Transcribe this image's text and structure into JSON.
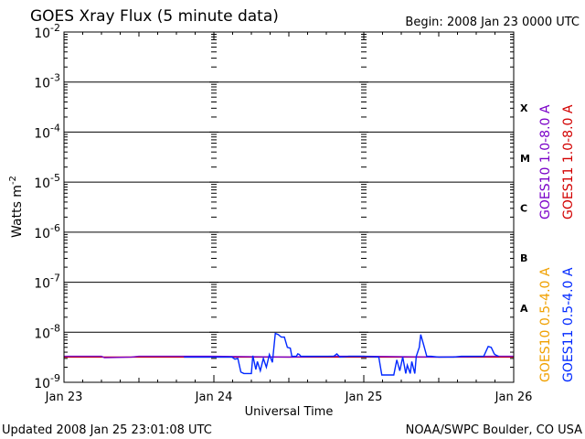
{
  "chart_data": {
    "type": "line",
    "title": "GOES Xray Flux (5 minute data)",
    "begin_label": "Begin:  2008 Jan 23 0000 UTC",
    "xlabel": "Universal Time",
    "ylabel": "Watts m",
    "ylabel_sup": "-2",
    "x_ticks": [
      "Jan 23",
      "Jan 24",
      "Jan 25",
      "Jan 26"
    ],
    "x_range_days": [
      0,
      3
    ],
    "y_scale": "log",
    "ylim": [
      1e-09,
      0.01
    ],
    "y_ticks": [
      {
        "base": "10",
        "exp": "-2"
      },
      {
        "base": "10",
        "exp": "-3"
      },
      {
        "base": "10",
        "exp": "-4"
      },
      {
        "base": "10",
        "exp": "-5"
      },
      {
        "base": "10",
        "exp": "-6"
      },
      {
        "base": "10",
        "exp": "-7"
      },
      {
        "base": "10",
        "exp": "-8"
      },
      {
        "base": "10",
        "exp": "-9"
      }
    ],
    "flare_classes": [
      "X",
      "M",
      "C",
      "B",
      "A"
    ],
    "legend": [
      {
        "text": "GOES10 1.0-8.0 A",
        "color": "#7a00c8"
      },
      {
        "text": "GOES11 1.0-8.0 A",
        "color": "#d20000"
      },
      {
        "text": "GOES10 0.5-4.0 A",
        "color": "#f0a000"
      },
      {
        "text": "GOES11 0.5-4.0 A",
        "color": "#0028ff"
      }
    ],
    "series": [
      {
        "name": "GOES11 1.0-8.0 A",
        "color": "#d20000",
        "x": [
          0,
          3
        ],
        "y": [
          3.2e-09,
          3.2e-09
        ]
      },
      {
        "name": "GOES10 1.0-8.0 A",
        "color": "#7a00c8",
        "x": [
          0,
          0.25,
          0.27,
          0.45,
          0.5,
          1.0,
          1.5,
          1.8,
          2.0,
          2.5,
          2.85,
          3
        ],
        "y": [
          3.3e-09,
          3.3e-09,
          3.1e-09,
          3.2e-09,
          3.3e-09,
          3.3e-09,
          3.2e-09,
          3.3e-09,
          3.3e-09,
          3.2e-09,
          3.3e-09,
          3.3e-09
        ]
      },
      {
        "name": "GOES11 0.5-4.0 A",
        "color": "#0028ff",
        "x": [
          0.8,
          1.0,
          1.12,
          1.14,
          1.16,
          1.18,
          1.2,
          1.22,
          1.25,
          1.26,
          1.28,
          1.29,
          1.31,
          1.33,
          1.35,
          1.37,
          1.39,
          1.41,
          1.43,
          1.45,
          1.47,
          1.49,
          1.51,
          1.52,
          1.55,
          1.56,
          1.57,
          1.58,
          1.6,
          1.8,
          1.82,
          1.84,
          1.9,
          2.0,
          2.1,
          2.12,
          2.14,
          2.2,
          2.22,
          2.24,
          2.26,
          2.28,
          2.29,
          2.31,
          2.32,
          2.34,
          2.35,
          2.37,
          2.38,
          2.4,
          2.42,
          2.45,
          2.5,
          2.6,
          2.65,
          2.7,
          2.8,
          2.83,
          2.85,
          2.87,
          2.88,
          2.9
        ],
        "y": [
          3.2e-09,
          3.2e-09,
          3.2e-09,
          2.9e-09,
          3e-09,
          1.6e-09,
          1.5e-09,
          1.5e-09,
          1.5e-09,
          3.4e-09,
          1.8e-09,
          2.6e-09,
          1.7e-09,
          3e-09,
          2e-09,
          3.6e-09,
          2.5e-09,
          9.5e-09,
          9e-09,
          8e-09,
          8e-09,
          5e-09,
          4.8e-09,
          3.3e-09,
          3.3e-09,
          3.7e-09,
          3.6e-09,
          3.3e-09,
          3.3e-09,
          3.3e-09,
          3.7e-09,
          3.2e-09,
          3.3e-09,
          3.3e-09,
          3.2e-09,
          1.4e-09,
          1.4e-09,
          1.4e-09,
          2.8e-09,
          1.7e-09,
          3.2e-09,
          1.5e-09,
          2.2e-09,
          1.5e-09,
          2.6e-09,
          1.5e-09,
          3.3e-09,
          5e-09,
          9e-09,
          5.5e-09,
          3.3e-09,
          3.3e-09,
          3.2e-09,
          3.2e-09,
          3.3e-09,
          3.3e-09,
          3.3e-09,
          5.2e-09,
          5e-09,
          3.7e-09,
          3.5e-09,
          3.3e-09
        ]
      },
      {
        "name": "GOES10 0.5-4.0 A",
        "color": "#f0a000",
        "x": [],
        "y": []
      }
    ]
  },
  "footer": {
    "updated": "Updated 2008 Jan 25 23:01:08 UTC",
    "credit": "NOAA/SWPC Boulder, CO USA"
  }
}
